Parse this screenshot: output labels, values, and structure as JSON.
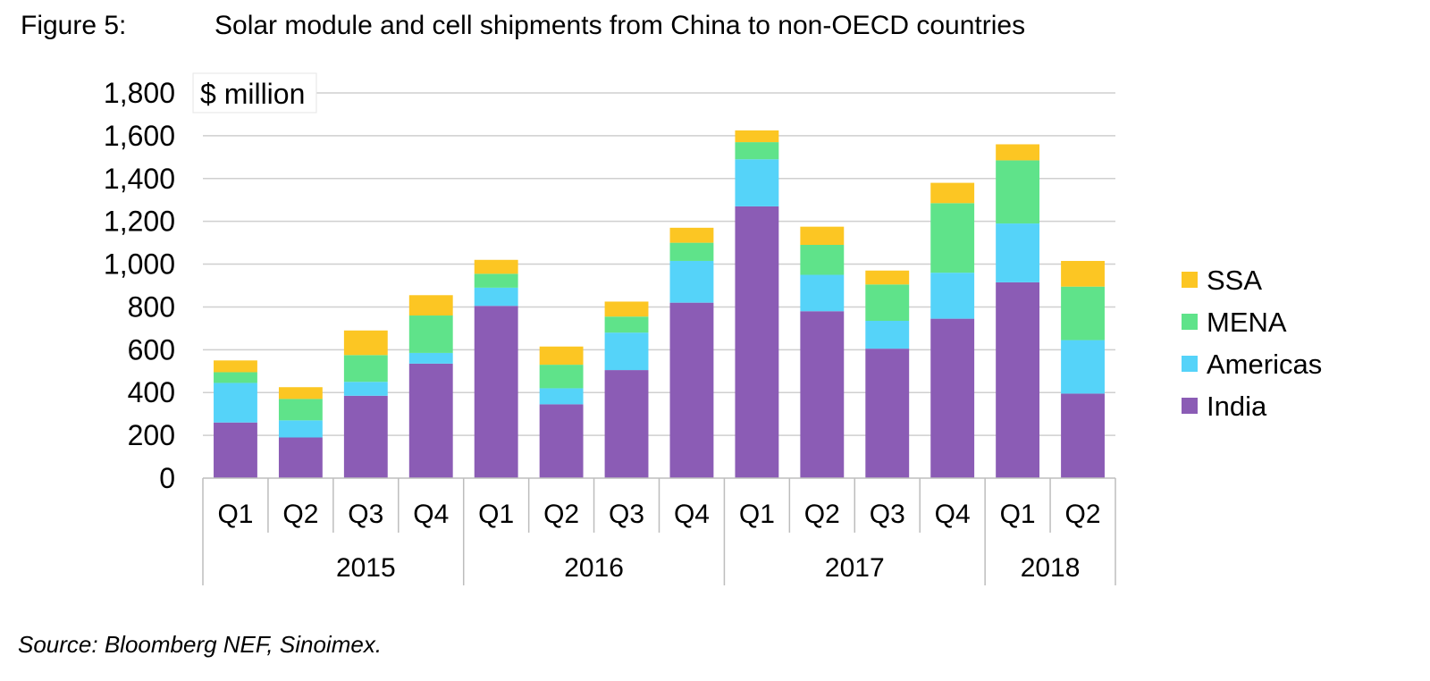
{
  "figure": {
    "label": "Figure 5:",
    "title": "Solar module and cell shipments from China to non-OECD countries",
    "source": "Source: Bloomberg NEF, Sinoimex."
  },
  "chart_data": {
    "type": "bar",
    "stacked": true,
    "title": "Solar module and cell shipments from China to non-OECD countries",
    "ylabel": "$ million",
    "ylim": [
      0,
      1800
    ],
    "yticks": [
      0,
      200,
      400,
      600,
      800,
      1000,
      1200,
      1400,
      1600,
      1800
    ],
    "ytick_labels": [
      "0",
      "200",
      "400",
      "600",
      "800",
      "1,000",
      "1,200",
      "1,400",
      "1,600",
      "1,800"
    ],
    "grid": true,
    "legend_position": "right",
    "categories": [
      "Q1",
      "Q2",
      "Q3",
      "Q4",
      "Q1",
      "Q2",
      "Q3",
      "Q4",
      "Q1",
      "Q2",
      "Q3",
      "Q4",
      "Q1",
      "Q2"
    ],
    "groups": [
      {
        "label": "2015",
        "count": 4
      },
      {
        "label": "2016",
        "count": 4
      },
      {
        "label": "2017",
        "count": 4
      },
      {
        "label": "2018",
        "count": 2
      }
    ],
    "series": [
      {
        "name": "India",
        "color": "#8B5CB5",
        "values": [
          260,
          190,
          385,
          535,
          805,
          345,
          505,
          820,
          1270,
          780,
          605,
          745,
          915,
          395
        ]
      },
      {
        "name": "Americas",
        "color": "#55D3F9",
        "values": [
          185,
          80,
          65,
          50,
          85,
          75,
          175,
          195,
          220,
          170,
          130,
          215,
          275,
          250
        ]
      },
      {
        "name": "MENA",
        "color": "#5FE38A",
        "values": [
          50,
          100,
          125,
          175,
          65,
          110,
          75,
          85,
          80,
          140,
          170,
          325,
          295,
          250
        ]
      },
      {
        "name": "SSA",
        "color": "#FCC623",
        "values": [
          55,
          55,
          115,
          95,
          65,
          85,
          70,
          70,
          55,
          85,
          65,
          95,
          75,
          120
        ]
      }
    ]
  }
}
